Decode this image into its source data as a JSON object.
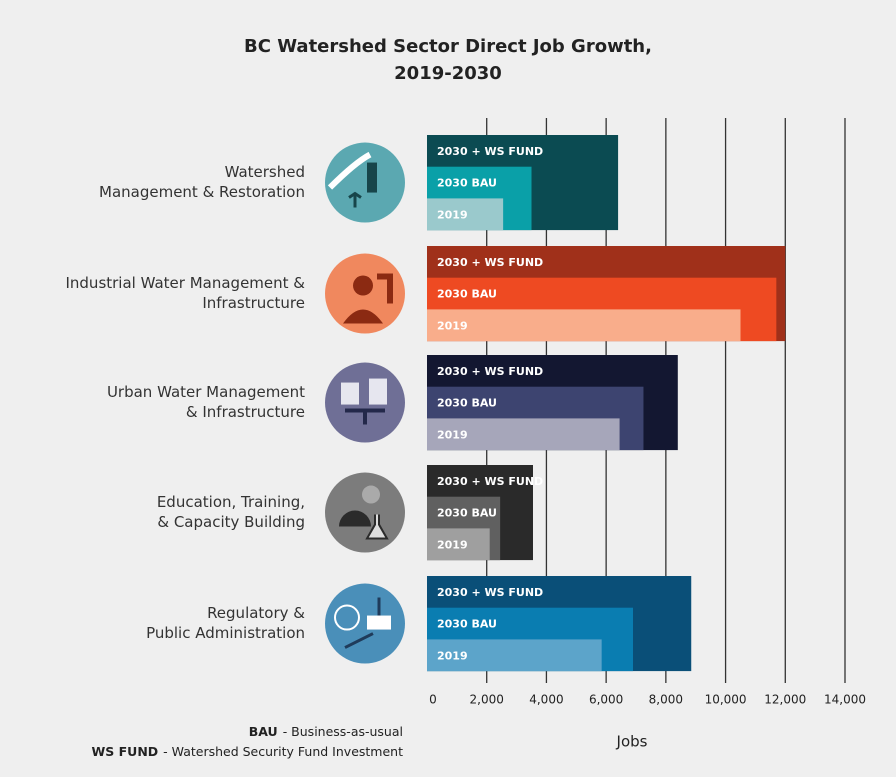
{
  "chart_data": {
    "type": "bar",
    "orientation": "horizontal",
    "title": [
      "BC Watershed Sector Direct Job Growth,",
      "2019-2030"
    ],
    "x_label": "Jobs",
    "categories": [
      [
        "Watershed",
        "Management & Restoration"
      ],
      [
        "Industrial Water Management &",
        "Infrastructure"
      ],
      [
        "Urban Water Management",
        "& Infrastructure"
      ],
      [
        "Education, Training,",
        "& Capacity Building"
      ],
      [
        "Regulatory &",
        "Public Administration"
      ]
    ],
    "icon_colors": [
      "#5ba8b1",
      "#f0885e",
      "#6f6f96",
      "#7c7c7c",
      "#4a8fb9"
    ],
    "series": [
      {
        "name": "2030 + WS FUND",
        "color": [
          "#0b4b52",
          "#a0301a",
          "#131731",
          "#2a2a2a",
          "#0a4f78"
        ],
        "values": [
          6400,
          12000,
          8400,
          3550,
          8850
        ]
      },
      {
        "name": "2030 BAU",
        "color": [
          "#0aa0a8",
          "#ee4a22",
          "#3d4470",
          "#606060",
          "#0a7db1"
        ],
        "values": [
          3500,
          11700,
          7250,
          2450,
          6900
        ]
      },
      {
        "name": "2019",
        "color": [
          "#9ac9cc",
          "#f9ad8b",
          "#a6a6ba",
          "#9f9f9f",
          "#5ca4ca"
        ],
        "values": [
          2550,
          10500,
          6450,
          2100,
          5850
        ]
      }
    ],
    "xlim": [
      0,
      14000
    ],
    "xticks": [
      0,
      {
        "value": 2000,
        "label": "2,000"
      },
      {
        "value": 4000,
        "label": "4,000"
      },
      {
        "value": 6000,
        "label": "6,000"
      },
      {
        "value": 8000,
        "label": "8,000"
      },
      {
        "value": 10000,
        "label": "10,000"
      },
      {
        "value": 12000,
        "label": "12,000"
      },
      {
        "value": 14000,
        "label": "14,000"
      }
    ],
    "grid": true,
    "notes": [
      {
        "term": "BAU",
        "text": "- Business-as-usual"
      },
      {
        "term": "WS FUND",
        "text": "- Watershed Security Fund Investment"
      }
    ]
  }
}
